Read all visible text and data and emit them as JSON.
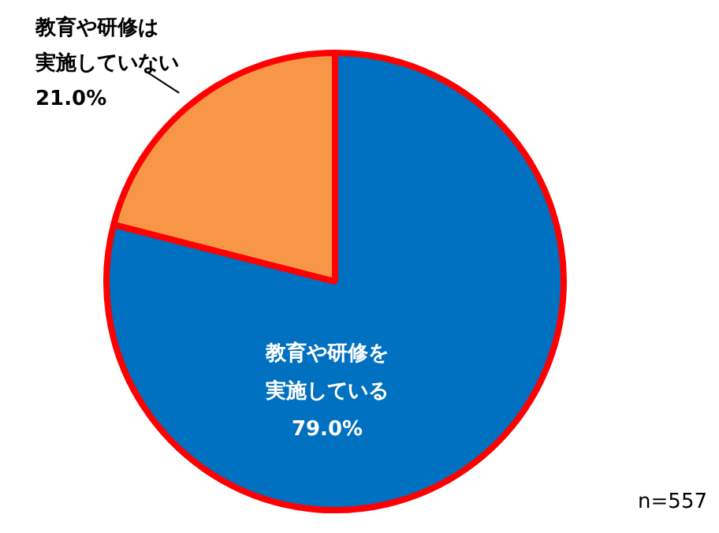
{
  "chart_data": {
    "type": "pie",
    "categories": [
      "教育や研修を実施している",
      "教育や研修は実施していない"
    ],
    "values": [
      79.0,
      21.0
    ],
    "value_labels": [
      "79.0%",
      "21.0%"
    ],
    "colors": [
      "#0070c0",
      "#f79646"
    ],
    "annotations": [
      "n=557"
    ]
  }
}
